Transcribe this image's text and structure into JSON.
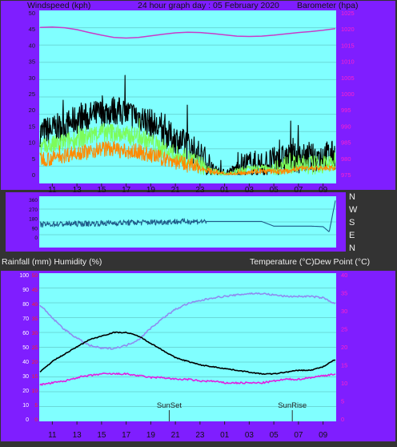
{
  "colors": {
    "frame": "#333333",
    "panel": "#7f1eff",
    "plot": "#80ffff",
    "gust": "#000000",
    "wind": "#7cfc5a",
    "wind_low": "#ff8a00",
    "baro": "#c83cc8",
    "direction": "#1f5c8a",
    "temperature": "#000000",
    "dew_point": "#e020e0",
    "humidity": "#8e8cf0",
    "rain_scale": "#ff2020",
    "sun_marker": "#303030",
    "axis_text": "#111111"
  },
  "header": {
    "left": "Windspeed (kph)",
    "center": "24 hour graph day : 05 February 2020",
    "right": "Barometer (hpa)"
  },
  "compass": [
    "N",
    "W",
    "S",
    "E",
    "N"
  ],
  "middle_labels": {
    "left": "Rainfall (mm)  Humidity (%)",
    "right": "Temperature (°C)Dew Point (°C)"
  },
  "hour_labels": [
    "11",
    "13",
    "15",
    "17",
    "19",
    "21",
    "23",
    "01",
    "03",
    "05",
    "07",
    "09"
  ],
  "sun_labels": {
    "sunset": "SunSet",
    "sunrise": "SunRise"
  },
  "chart_data": [
    {
      "type": "line",
      "x_ticks": [
        "11",
        "13",
        "15",
        "17",
        "19",
        "21",
        "23",
        "01",
        "03",
        "05",
        "07",
        "09"
      ],
      "left_axis": {
        "label": "Windspeed (kph)",
        "range": [
          0,
          50
        ],
        "ticks": [
          "0",
          "5",
          "10",
          "15",
          "20",
          "25",
          "30",
          "35",
          "40",
          "45",
          "50"
        ]
      },
      "right_axis": {
        "label": "Barometer (hpa)",
        "range": [
          975,
          1025
        ],
        "ticks": [
          "975",
          "980",
          "985",
          "990",
          "995",
          "1000",
          "1005",
          "1010",
          "1015",
          "1020",
          "1025"
        ]
      },
      "series": [
        {
          "axis": "right",
          "x": [
            0,
            1,
            2,
            3,
            4,
            5,
            6,
            7,
            8,
            9,
            10,
            11,
            12,
            13,
            14,
            15,
            16,
            17,
            18,
            19,
            20,
            21,
            22,
            23,
            24
          ],
          "values": [
            1020.5,
            1020.6,
            1020.4,
            1019.8,
            1018.9,
            1018.1,
            1017.4,
            1017.2,
            1017.4,
            1017.9,
            1018.4,
            1018.8,
            1019.0,
            1018.9,
            1018.6,
            1018.2,
            1017.8,
            1017.7,
            1017.8,
            1018.1,
            1018.5,
            1018.9,
            1019.2,
            1019.6,
            1020.1
          ]
        },
        {
          "axis": "left",
          "x": [
            0,
            1,
            2,
            3,
            4,
            5,
            6,
            7,
            8,
            9,
            10,
            11,
            12,
            13,
            14,
            15,
            16,
            17,
            18,
            19,
            20,
            21,
            22,
            23,
            24
          ],
          "values": [
            13,
            14,
            15,
            17,
            18,
            19,
            20,
            19,
            18,
            16,
            13,
            11,
            9,
            6,
            2,
            0,
            2,
            3,
            3,
            4,
            5,
            5,
            5,
            6,
            6
          ]
        },
        {
          "axis": "left",
          "x": [
            0,
            1,
            2,
            3,
            4,
            5,
            6,
            7,
            8,
            9,
            10,
            11,
            12,
            13,
            14,
            15,
            16,
            17,
            18,
            19,
            20,
            21,
            22,
            23,
            24
          ],
          "values": [
            8,
            9,
            10,
            11,
            12,
            13,
            13,
            12,
            12,
            10,
            8,
            6,
            5,
            3,
            1,
            0,
            1,
            2,
            2,
            2,
            3,
            3,
            3,
            3,
            4
          ]
        },
        {
          "axis": "left",
          "x": [
            0,
            1,
            2,
            3,
            4,
            5,
            6,
            7,
            8,
            9,
            10,
            11,
            12,
            13,
            14,
            15,
            16,
            17,
            18,
            19,
            20,
            21,
            22,
            23,
            24
          ],
          "values": [
            5,
            5,
            6,
            7,
            7,
            8,
            8,
            7,
            7,
            6,
            5,
            4,
            3,
            2,
            1,
            0,
            0,
            1,
            1,
            1,
            1,
            2,
            2,
            2,
            2
          ]
        }
      ]
    },
    {
      "type": "line",
      "x_ticks": [
        "11",
        "13",
        "15",
        "17",
        "19",
        "21",
        "23",
        "01",
        "03",
        "05",
        "07",
        "09"
      ],
      "left_axis": {
        "range": [
          0,
          360
        ],
        "ticks": [
          "0",
          "90",
          "180",
          "270",
          "360"
        ]
      },
      "right_axis": {
        "ticks": [
          "N",
          "W",
          "S",
          "E",
          "N"
        ]
      },
      "series": [
        {
          "x": [
            0,
            1,
            2,
            3,
            4,
            5,
            6,
            7,
            8,
            9,
            10,
            11,
            12,
            13,
            14,
            15,
            16,
            17,
            18,
            19,
            20,
            21,
            22,
            23,
            23.5,
            24
          ],
          "values": [
            120,
            124,
            126,
            128,
            130,
            132,
            135,
            138,
            140,
            142,
            145,
            148,
            150,
            150,
            150,
            150,
            150,
            150,
            150,
            105,
            105,
            105,
            105,
            100,
            50,
            350
          ]
        }
      ]
    },
    {
      "type": "line",
      "x_ticks": [
        "11",
        "13",
        "15",
        "17",
        "19",
        "21",
        "23",
        "01",
        "03",
        "05",
        "07",
        "09"
      ],
      "left_axis": {
        "label": "Rainfall (mm)  Humidity (%)",
        "range": [
          0,
          100
        ],
        "ticks": [
          "0",
          "10",
          "20",
          "30",
          "40",
          "50",
          "60",
          "70",
          "80",
          "90",
          "100"
        ]
      },
      "rain_axis": {
        "range": [
          0,
          50
        ],
        "ticks": [
          "0",
          "5",
          "10",
          "15",
          "20",
          "25",
          "30",
          "35",
          "40",
          "45",
          "50"
        ]
      },
      "right_axis": {
        "label": "Temperature (°C)Dew Point (°C)",
        "range": [
          0,
          40
        ],
        "ticks": [
          "0",
          "5",
          "10",
          "15",
          "20",
          "25",
          "30",
          "35",
          "40"
        ]
      },
      "annotations": [
        {
          "label": "SunSet",
          "x": 10.5
        },
        {
          "label": "SunRise",
          "x": 20.5
        }
      ],
      "series": [
        {
          "axis": "right",
          "x": [
            0,
            1,
            2,
            3,
            4,
            5,
            6,
            7,
            8,
            9,
            10,
            11,
            12,
            13,
            14,
            15,
            16,
            17,
            18,
            19,
            20,
            21,
            22,
            23,
            24
          ],
          "values": [
            13,
            16,
            18,
            20,
            22,
            23,
            24,
            24,
            23,
            21,
            19,
            17,
            16,
            15,
            14.5,
            14,
            13.5,
            13,
            12.5,
            12.5,
            13,
            13.5,
            13.5,
            14.5,
            16.5
          ]
        },
        {
          "axis": "right",
          "x": [
            0,
            1,
            2,
            3,
            4,
            5,
            6,
            7,
            8,
            9,
            10,
            11,
            12,
            13,
            14,
            15,
            16,
            17,
            18,
            19,
            20,
            21,
            22,
            23,
            24
          ],
          "values": [
            9.5,
            10,
            10.5,
            11.5,
            12,
            12.5,
            12.5,
            12.5,
            12,
            11.5,
            11.5,
            11,
            11,
            10.5,
            10.5,
            10,
            10,
            10,
            10,
            10.5,
            11,
            11,
            11.5,
            12,
            12.5
          ]
        },
        {
          "axis": "left",
          "x": [
            0,
            1,
            2,
            3,
            4,
            5,
            6,
            7,
            8,
            9,
            10,
            11,
            12,
            13,
            14,
            15,
            16,
            17,
            18,
            19,
            20,
            21,
            22,
            23,
            24
          ],
          "values": [
            79,
            70,
            62,
            56,
            51,
            49,
            49,
            51,
            55,
            63,
            70,
            76,
            80,
            82,
            84,
            85,
            86,
            87,
            87,
            86,
            85,
            85,
            85,
            84,
            80
          ]
        }
      ]
    }
  ]
}
